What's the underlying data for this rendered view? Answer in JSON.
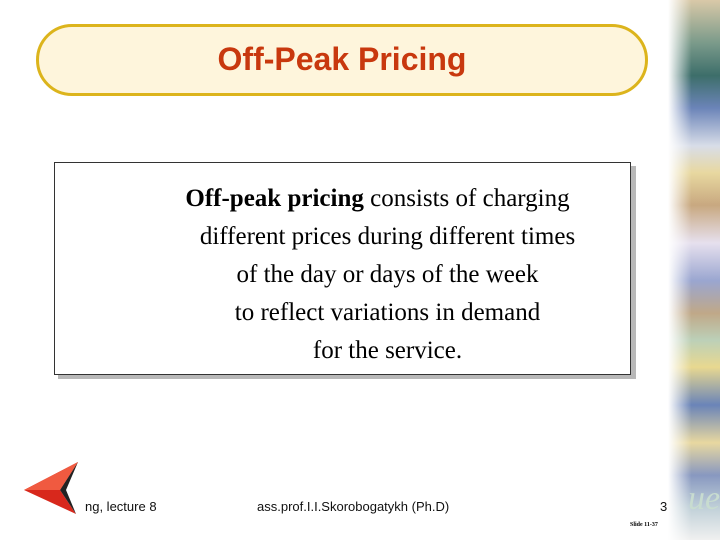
{
  "title": "Off-Peak Pricing",
  "body": {
    "bold_term": "Off-peak pricing",
    "line1_rest": " consists of charging",
    "lines": [
      "different prices during different times",
      "of the day or days of the week",
      "to reflect variations in demand",
      "for the service."
    ]
  },
  "footer": {
    "left": "ng, lecture 8",
    "center": "ass.prof.I.I.Skorobogatykh (Ph.D)",
    "page": "3",
    "slide": "Slide 11-37"
  },
  "decor": {
    "strip_text": "ue"
  },
  "colors": {
    "title": "#c8380e",
    "pill_border": "#dcb41c",
    "pill_fill": "#fef5dc",
    "logo": "#d8281c"
  }
}
